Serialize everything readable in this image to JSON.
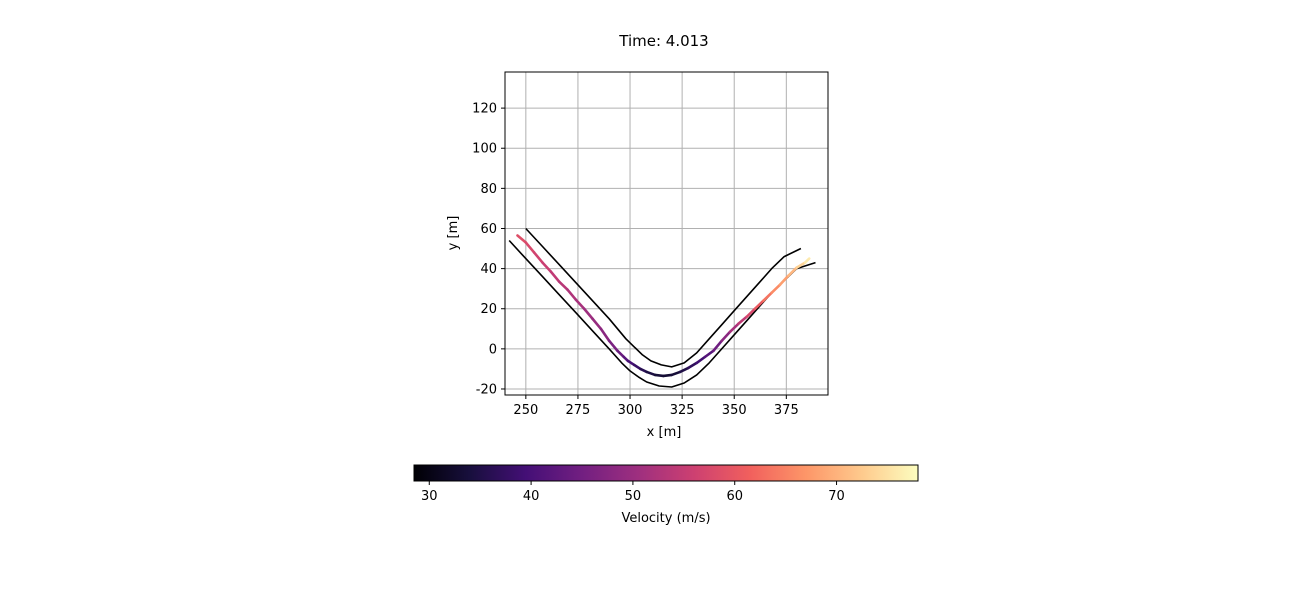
{
  "chart_data": {
    "type": "line",
    "title": "Time: 4.013",
    "xlabel": "x [m]",
    "ylabel": "y [m]",
    "xlim": [
      240,
      395
    ],
    "ylim": [
      -23,
      138
    ],
    "xticks": [
      250,
      275,
      300,
      325,
      350,
      375
    ],
    "yticks": [
      -20,
      0,
      20,
      40,
      60,
      80,
      100,
      120
    ],
    "grid": true,
    "boundaries": [
      {
        "x": [
          250,
          258,
          266,
          274,
          282,
          290,
          298,
          302,
          306,
          310,
          315,
          320,
          326,
          332,
          338,
          344,
          350,
          356,
          362,
          368,
          374,
          382
        ],
        "y": [
          60,
          51,
          42,
          33,
          24,
          15,
          5,
          1,
          -3,
          -6,
          -8,
          -9,
          -7,
          -2,
          5,
          12,
          19,
          26,
          33,
          40,
          46,
          50
        ]
      },
      {
        "x": [
          242,
          250,
          258,
          266,
          274,
          282,
          290,
          296,
          300,
          304,
          308,
          314,
          320,
          326,
          332,
          338,
          344,
          350,
          356,
          362,
          368,
          374,
          380,
          389
        ],
        "y": [
          54,
          45,
          36,
          27,
          18,
          9,
          0,
          -7,
          -11,
          -14,
          -16.5,
          -18.5,
          -19,
          -17,
          -13,
          -7,
          0,
          7,
          14,
          21,
          28,
          34,
          40,
          43
        ]
      }
    ],
    "trajectory": {
      "x": [
        246,
        250,
        254,
        258,
        262,
        266,
        270,
        274,
        278,
        282,
        286,
        290,
        294,
        297,
        299,
        302,
        305,
        308,
        312,
        316,
        320,
        324,
        328,
        332,
        336,
        340,
        344,
        348,
        352,
        356,
        360,
        364,
        368,
        372,
        376,
        380,
        384,
        386
      ],
      "y": [
        56.5,
        53,
        48,
        43,
        38.5,
        33.5,
        29.5,
        24.5,
        20,
        15,
        10,
        4,
        -1,
        -4,
        -6,
        -8,
        -10,
        -11.5,
        -13,
        -13.5,
        -13,
        -11.5,
        -9.5,
        -7,
        -4,
        -1,
        4,
        8.5,
        12.5,
        16,
        20,
        24,
        28,
        32,
        36.5,
        40.5,
        43,
        45
      ],
      "velocity": [
        59,
        58,
        57,
        56,
        55,
        54,
        53,
        52,
        51,
        50,
        49,
        47,
        45,
        43,
        41,
        39,
        37,
        35,
        34,
        33,
        33,
        34,
        36,
        38,
        40,
        43,
        46,
        50,
        53,
        56,
        59,
        62,
        65,
        67,
        69,
        72,
        75,
        77
      ]
    },
    "colorbar": {
      "label": "Velocity (m/s)",
      "range": [
        28.5,
        78
      ],
      "ticks": [
        30,
        40,
        50,
        60,
        70
      ],
      "colormap": "magma",
      "stops": [
        "#000004",
        "#180f3d",
        "#440f76",
        "#721f81",
        "#9e2f7f",
        "#cd4071",
        "#f1605d",
        "#fd9668",
        "#feca8d",
        "#fcfdbf"
      ]
    },
    "colors": {
      "boundary": "#000000",
      "grid": "#b0b0b0"
    }
  }
}
